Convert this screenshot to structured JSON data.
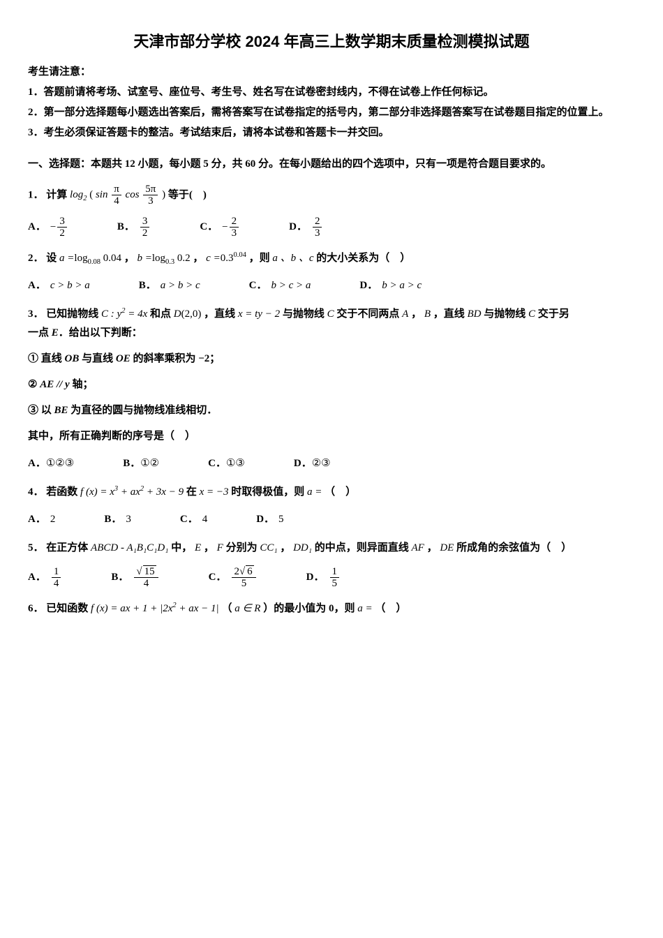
{
  "title": "天津市部分学校 2024 年高三上数学期末质量检测模拟试题",
  "notice_head": "考生请注意：",
  "notice": [
    "1．答题前请将考场、试室号、座位号、考生号、姓名写在试卷密封线内，不得在试卷上作任何标记。",
    "2．第一部分选择题每小题选出答案后，需将答案写在试卷指定的括号内，第二部分非选择题答案写在试卷题目指定的位置上。",
    "3．考生必须保证答题卡的整洁。考试结束后，请将本试卷和答题卡一并交回。"
  ],
  "section1": "一、选择题：本题共 12 小题，每小题 5 分，共 60 分。在每小题给出的四个选项中，只有一项是符合题目要求的。",
  "q1": {
    "label": "1．",
    "pre": "计算",
    "post": "等于(　)",
    "log": "log",
    "logbase": "2",
    "sin": "sin",
    "cos": "cos",
    "f1n": "π",
    "f1d": "4",
    "f2n": "5π",
    "f2d": "3",
    "opts": {
      "A": "A．",
      "B": "B．",
      "C": "C．",
      "D": "D．",
      "An": "3",
      "Ad": "2",
      "Bn": "3",
      "Bd": "2",
      "Cn": "2",
      "Cd": "3",
      "Dn": "2",
      "Dd": "3",
      "Asign": "−",
      "Csign": "−"
    }
  },
  "q2": {
    "label": "2．",
    "pre": "设",
    "mid1": "，",
    "mid2": "，",
    "mid3": "，则",
    "post": "的大小关系为（　）",
    "a_eq": "a =",
    "b_eq": "b =",
    "c_eq": "c =",
    "log": "log",
    "b1": "0.08",
    "v1": "0.04",
    "b2": "0.3",
    "v2": "0.2",
    "c_base": "0.3",
    "c_exp": "0.04",
    "abc": "a 、b 、c",
    "opts": {
      "A": "A．",
      "B": "B．",
      "C": "C．",
      "D": "D．",
      "At": "c > b > a",
      "Bt": "a > b > c",
      "Ct": "b > c > a",
      "Dt": "b > a > c"
    }
  },
  "q3": {
    "label": "3．",
    "t1": "已知抛物线",
    "C": "C : y",
    "sq": "2",
    "eq4x": " = 4x",
    "t2": " 和点 ",
    "D": "D",
    "Dp": "(2,0)",
    "t3": "，直线 ",
    "line": "x = ty − 2",
    "t4": " 与抛物线 ",
    "Cc": "C",
    "t5": " 交于不同两点 ",
    "A": "A",
    "comma": "，",
    "B": "B",
    "t6": "，直线 ",
    "BD": "BD",
    "t7": " 与抛物线 ",
    "t8": " 交于另",
    "line2_pre": "一点 ",
    "E": "E",
    "line2_post": "．给出以下判断：",
    "s1_pre": "① 直线 ",
    "OB": "OB",
    "s1_mid": " 与直线 ",
    "OE": "OE",
    "s1_post": " 的斜率乘积为 ",
    "neg2": "−2",
    "semi": "；",
    "s2_pre": "② ",
    "AE": "AE // y",
    "s2_post": " 轴；",
    "s3_pre": "③ 以 ",
    "BE": "BE",
    "s3_post": " 为直径的圆与抛物线准线相切．",
    "ask": "其中，所有正确判断的序号是（　）",
    "opts": {
      "A": "A．",
      "B": "B．",
      "C": "C．",
      "D": "D．",
      "At": "①②③",
      "Bt": "①②",
      "Ct": "①③",
      "Dt": "②③"
    }
  },
  "q4": {
    "label": "4．",
    "t1": "若函数 ",
    "fx": "f (x) = x",
    "cub": "3",
    "p1": " + ax",
    "sq": "2",
    "p2": " + 3x − 9",
    "t2": " 在 ",
    "xeq": "x = −3",
    "t3": " 时取得极值，则 ",
    "aeq": "a =",
    "t4": "（　）",
    "opts": {
      "A": "A．",
      "B": "B．",
      "C": "C．",
      "D": "D．",
      "At": "2",
      "Bt": "3",
      "Ct": "4",
      "Dt": "5"
    }
  },
  "q5": {
    "label": "5．",
    "t1": "在正方体 ",
    "cube": "ABCD - A₁B₁C₁D₁",
    "t2": " 中，",
    "E": "E",
    "c": "，",
    "F": "F",
    "t3": " 分别为 ",
    "CC": "CC₁",
    "c2": "，",
    "DD": "DD₁",
    "t4": " 的中点，则异面直线 ",
    "AF": "AF",
    "c3": "，",
    "DE": "DE",
    "t5": " 所成角的余弦值为（　）",
    "opts": {
      "A": "A．",
      "B": "B．",
      "C": "C．",
      "D": "D．",
      "An": "1",
      "Ad": "4",
      "Bn": "15",
      "Bd": "4",
      "Cn": "6",
      "Cmul": "2",
      "Cd": "5",
      "Dn": "1",
      "Dd": "5"
    }
  },
  "q6": {
    "label": "6．",
    "t1": "已知函数 ",
    "fx": "f (x) = ax + 1 + |2x",
    "sq": "2",
    "p": " + ax − 1|",
    "t2": "（",
    "aR": "a ∈ R",
    "t3": "）的最小值为 0，则 ",
    "aeq": "a =",
    "t4": "（　）"
  }
}
